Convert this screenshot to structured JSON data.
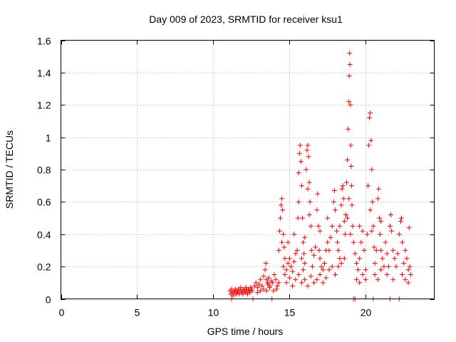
{
  "chart_data": {
    "type": "scatter",
    "title": "Day 009 of 2023, SRMTID for receiver ksu1",
    "xlabel": "GPS time / hours",
    "ylabel": "SRMTID / TECUs",
    "xlim": [
      0,
      24.5
    ],
    "ylim": [
      0,
      1.6
    ],
    "x_ticks": [
      0,
      5,
      10,
      15,
      20
    ],
    "x_tick_labels": [
      "0",
      "5",
      "10",
      "15",
      "20"
    ],
    "y_ticks": [
      0,
      0.2,
      0.4,
      0.6,
      0.8,
      1.0,
      1.2,
      1.4,
      1.6
    ],
    "y_tick_labels": [
      "0",
      "0.2",
      "0.4",
      "0.6",
      "0.8",
      "1",
      "1.2",
      "1.4",
      "1.6"
    ],
    "grid": true,
    "marker": "plus",
    "color": "#ff0000",
    "series": [
      {
        "name": "SRMTID",
        "points": [
          [
            11.1,
            0.05
          ],
          [
            11.15,
            0.03
          ],
          [
            11.2,
            0.06
          ],
          [
            11.25,
            0.04
          ],
          [
            11.3,
            0.02
          ],
          [
            11.35,
            0.05
          ],
          [
            11.4,
            0.04
          ],
          [
            11.45,
            0.06
          ],
          [
            11.5,
            0.03
          ],
          [
            11.55,
            0.05
          ],
          [
            11.6,
            0.04
          ],
          [
            11.65,
            0.06
          ],
          [
            11.7,
            0.03
          ],
          [
            11.75,
            0.05
          ],
          [
            11.8,
            0.07
          ],
          [
            11.85,
            0.04
          ],
          [
            11.9,
            0.05
          ],
          [
            11.95,
            0.03
          ],
          [
            12.0,
            0.06
          ],
          [
            12.05,
            0.05
          ],
          [
            12.1,
            0.04
          ],
          [
            12.15,
            0.07
          ],
          [
            12.2,
            0.05
          ],
          [
            12.25,
            0.03
          ],
          [
            12.3,
            0.06
          ],
          [
            12.35,
            0.05
          ],
          [
            12.4,
            0.04
          ],
          [
            12.45,
            0.07
          ],
          [
            12.5,
            0.06
          ],
          [
            12.55,
            0.05
          ],
          [
            11.2,
            0.0
          ],
          [
            12.6,
            0.0
          ],
          [
            13.85,
            0.0
          ],
          [
            19.2,
            0.0
          ],
          [
            19.3,
            0.0
          ],
          [
            20.5,
            0.0
          ],
          [
            21.6,
            0.0
          ],
          [
            22.2,
            0.0
          ],
          [
            12.7,
            0.08
          ],
          [
            12.8,
            0.1
          ],
          [
            12.9,
            0.07
          ],
          [
            13.0,
            0.09
          ],
          [
            13.1,
            0.12
          ],
          [
            13.2,
            0.08
          ],
          [
            13.3,
            0.14
          ],
          [
            13.4,
            0.18
          ],
          [
            13.45,
            0.22
          ],
          [
            13.5,
            0.12
          ],
          [
            13.55,
            0.1
          ],
          [
            13.6,
            0.09
          ],
          [
            13.65,
            0.13
          ],
          [
            13.7,
            0.08
          ],
          [
            13.8,
            0.11
          ],
          [
            13.9,
            0.1
          ],
          [
            14.0,
            0.15
          ],
          [
            14.1,
            0.12
          ],
          [
            14.2,
            0.08
          ],
          [
            14.3,
            0.1
          ],
          [
            13.3,
            0.06
          ],
          [
            13.5,
            0.05
          ],
          [
            13.7,
            0.07
          ],
          [
            13.95,
            0.05
          ],
          [
            14.15,
            0.06
          ],
          [
            12.9,
            0.04
          ],
          [
            13.1,
            0.05
          ],
          [
            14.3,
            0.3
          ],
          [
            14.35,
            0.42
          ],
          [
            14.4,
            0.5
          ],
          [
            14.45,
            0.58
          ],
          [
            14.5,
            0.62
          ],
          [
            14.55,
            0.55
          ],
          [
            14.6,
            0.4
          ],
          [
            14.65,
            0.32
          ],
          [
            14.7,
            0.25
          ],
          [
            14.5,
            0.35
          ],
          [
            14.6,
            0.2
          ],
          [
            14.7,
            0.15
          ],
          [
            14.8,
            0.18
          ],
          [
            14.9,
            0.22
          ],
          [
            15.0,
            0.25
          ],
          [
            15.1,
            0.2
          ],
          [
            15.2,
            0.17
          ],
          [
            15.3,
            0.23
          ],
          [
            15.4,
            0.28
          ],
          [
            15.5,
            0.3
          ],
          [
            15.55,
            0.5
          ],
          [
            15.6,
            0.78
          ],
          [
            15.65,
            0.9
          ],
          [
            15.7,
            0.95
          ],
          [
            15.75,
            0.85
          ],
          [
            15.8,
            0.7
          ],
          [
            15.85,
            0.5
          ],
          [
            15.9,
            0.35
          ],
          [
            15.95,
            0.28
          ],
          [
            15.6,
            0.6
          ],
          [
            16.1,
            0.8
          ],
          [
            16.15,
            0.92
          ],
          [
            16.2,
            0.95
          ],
          [
            16.25,
            0.88
          ],
          [
            16.3,
            0.72
          ],
          [
            16.35,
            0.6
          ],
          [
            16.4,
            0.45
          ],
          [
            16.45,
            0.3
          ],
          [
            16.2,
            0.68
          ],
          [
            16.3,
            0.52
          ],
          [
            15.8,
            0.25
          ],
          [
            15.9,
            0.18
          ],
          [
            16.0,
            0.22
          ],
          [
            16.5,
            0.2
          ],
          [
            16.6,
            0.27
          ],
          [
            16.7,
            0.32
          ],
          [
            16.8,
            0.55
          ],
          [
            16.85,
            0.65
          ],
          [
            16.9,
            0.45
          ],
          [
            16.95,
            0.3
          ],
          [
            17.0,
            0.25
          ],
          [
            17.1,
            0.2
          ],
          [
            17.2,
            0.18
          ],
          [
            17.3,
            0.22
          ],
          [
            17.4,
            0.3
          ],
          [
            17.5,
            0.35
          ],
          [
            17.6,
            0.3
          ],
          [
            17.7,
            0.38
          ],
          [
            17.8,
            0.45
          ],
          [
            17.9,
            0.6
          ],
          [
            17.95,
            0.67
          ],
          [
            18.0,
            0.55
          ],
          [
            18.1,
            0.42
          ],
          [
            18.15,
            0.35
          ],
          [
            18.2,
            0.3
          ],
          [
            18.3,
            0.25
          ],
          [
            18.4,
            0.58
          ],
          [
            18.45,
            0.68
          ],
          [
            18.5,
            0.7
          ],
          [
            18.55,
            0.62
          ],
          [
            18.6,
            0.48
          ],
          [
            18.65,
            0.4
          ],
          [
            18.7,
            0.52
          ],
          [
            18.75,
            0.72
          ],
          [
            18.8,
            0.86
          ],
          [
            18.85,
            1.05
          ],
          [
            18.9,
            1.22
          ],
          [
            18.92,
            1.38
          ],
          [
            18.95,
            1.52
          ],
          [
            18.97,
            1.45
          ],
          [
            19.0,
            1.2
          ],
          [
            19.02,
            0.95
          ],
          [
            19.05,
            0.82
          ],
          [
            19.08,
            0.7
          ],
          [
            19.1,
            0.58
          ],
          [
            19.15,
            0.45
          ],
          [
            19.2,
            0.35
          ],
          [
            18.8,
            0.5
          ],
          [
            18.9,
            0.62
          ],
          [
            19.0,
            0.4
          ],
          [
            19.3,
            0.28
          ],
          [
            19.4,
            0.22
          ],
          [
            19.5,
            0.18
          ],
          [
            19.6,
            0.25
          ],
          [
            19.7,
            0.35
          ],
          [
            19.8,
            0.42
          ],
          [
            19.9,
            0.3
          ],
          [
            20.0,
            0.18
          ],
          [
            20.1,
            0.4
          ],
          [
            20.15,
            0.7
          ],
          [
            20.2,
            0.95
          ],
          [
            20.25,
            1.12
          ],
          [
            20.3,
            1.15
          ],
          [
            20.35,
            0.98
          ],
          [
            20.4,
            0.8
          ],
          [
            20.45,
            0.6
          ],
          [
            20.5,
            0.45
          ],
          [
            20.55,
            0.32
          ],
          [
            20.3,
            0.55
          ],
          [
            20.4,
            0.42
          ],
          [
            20.6,
            0.22
          ],
          [
            20.7,
            0.3
          ],
          [
            20.8,
            0.62
          ],
          [
            20.85,
            0.68
          ],
          [
            20.9,
            0.5
          ],
          [
            20.95,
            0.4
          ],
          [
            21.0,
            0.3
          ],
          [
            21.1,
            0.25
          ],
          [
            21.2,
            0.2
          ],
          [
            21.3,
            0.35
          ],
          [
            21.4,
            0.28
          ],
          [
            21.5,
            0.2
          ],
          [
            21.6,
            0.45
          ],
          [
            21.65,
            0.52
          ],
          [
            21.7,
            0.42
          ],
          [
            21.8,
            0.3
          ],
          [
            21.9,
            0.25
          ],
          [
            22.0,
            0.2
          ],
          [
            22.1,
            0.28
          ],
          [
            22.2,
            0.4
          ],
          [
            22.3,
            0.48
          ],
          [
            22.35,
            0.5
          ],
          [
            22.4,
            0.35
          ],
          [
            22.5,
            0.22
          ],
          [
            22.6,
            0.3
          ],
          [
            22.7,
            0.25
          ],
          [
            22.8,
            0.18
          ],
          [
            22.85,
            0.44
          ],
          [
            22.9,
            0.2
          ],
          [
            22.95,
            0.15
          ],
          [
            14.8,
            0.1
          ],
          [
            15.0,
            0.13
          ],
          [
            15.2,
            0.08
          ],
          [
            15.4,
            0.12
          ],
          [
            15.6,
            0.15
          ],
          [
            15.8,
            0.1
          ],
          [
            16.0,
            0.12
          ],
          [
            16.2,
            0.08
          ],
          [
            16.4,
            0.14
          ],
          [
            16.6,
            0.1
          ],
          [
            16.8,
            0.12
          ],
          [
            17.0,
            0.15
          ],
          [
            17.2,
            0.1
          ],
          [
            17.4,
            0.13
          ],
          [
            17.6,
            0.18
          ],
          [
            17.8,
            0.2
          ],
          [
            18.0,
            0.15
          ],
          [
            18.2,
            0.2
          ],
          [
            18.4,
            0.22
          ],
          [
            18.6,
            0.25
          ],
          [
            19.4,
            0.12
          ],
          [
            19.6,
            0.1
          ],
          [
            19.8,
            0.15
          ],
          [
            20.0,
            0.12
          ],
          [
            20.6,
            0.15
          ],
          [
            20.8,
            0.12
          ],
          [
            21.0,
            0.18
          ],
          [
            21.4,
            0.15
          ],
          [
            21.8,
            0.12
          ],
          [
            22.4,
            0.15
          ],
          [
            22.6,
            0.12
          ],
          [
            22.8,
            0.1
          ],
          [
            14.9,
            0.35
          ],
          [
            15.3,
            0.4
          ],
          [
            16.0,
            0.38
          ],
          [
            17.0,
            0.42
          ],
          [
            17.5,
            0.5
          ],
          [
            18.3,
            0.45
          ],
          [
            19.6,
            0.45
          ],
          [
            21.0,
            0.48
          ]
        ]
      }
    ]
  }
}
